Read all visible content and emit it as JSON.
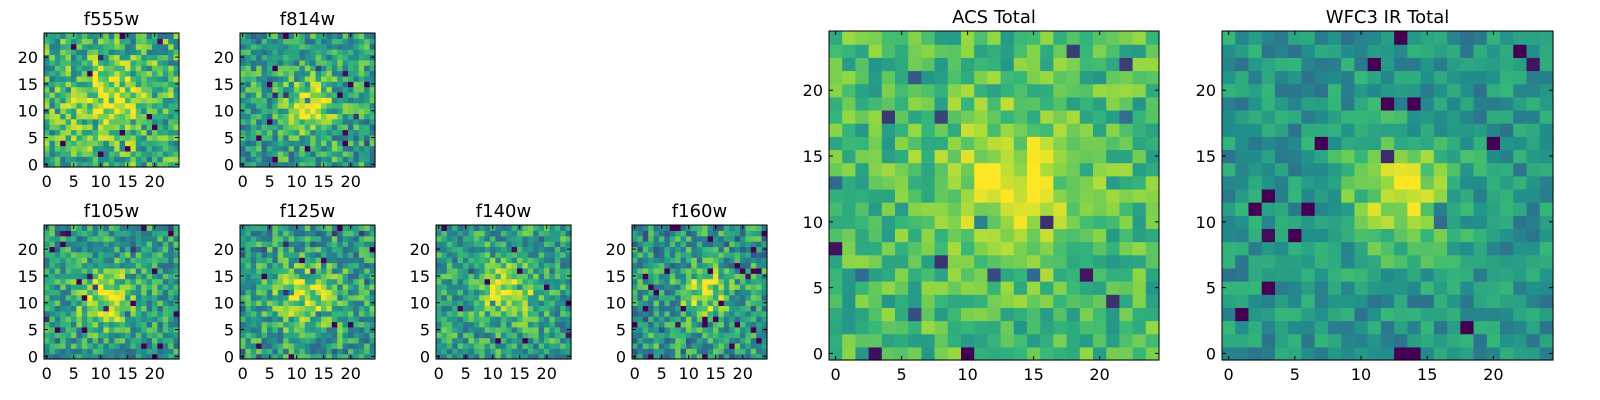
{
  "colormap": [
    "#440154",
    "#31688e",
    "#21918c",
    "#35b779",
    "#90d743",
    "#fde725"
  ],
  "chart_data": [
    {
      "type": "heatmap",
      "title": "f555w",
      "grid_size": 25,
      "center": [
        12,
        12
      ],
      "peak": 0.3,
      "spread": 5.0,
      "noise": 0.32,
      "base": 0.55,
      "seed": 11,
      "xticks": [
        0,
        5,
        10,
        15,
        20
      ],
      "yticks": [
        0,
        5,
        10,
        15,
        20
      ],
      "xlim": [
        -0.5,
        24.5
      ],
      "ylim": [
        -0.5,
        24.5
      ]
    },
    {
      "type": "heatmap",
      "title": "f814w",
      "grid_size": 25,
      "center": [
        12,
        11
      ],
      "peak": 0.45,
      "spread": 3.5,
      "noise": 0.3,
      "base": 0.48,
      "seed": 23,
      "xticks": [
        0,
        5,
        10,
        15,
        20
      ],
      "yticks": [
        0,
        5,
        10,
        15,
        20
      ],
      "xlim": [
        -0.5,
        24.5
      ],
      "ylim": [
        -0.5,
        24.5
      ]
    },
    {
      "type": "heatmap",
      "title": "f105w",
      "grid_size": 25,
      "center": [
        11,
        11
      ],
      "peak": 0.45,
      "spread": 4.0,
      "noise": 0.28,
      "base": 0.45,
      "seed": 37,
      "xticks": [
        0,
        5,
        10,
        15,
        20
      ],
      "yticks": [
        0,
        5,
        10,
        15,
        20
      ],
      "xlim": [
        -0.5,
        24.5
      ],
      "ylim": [
        -0.5,
        24.5
      ]
    },
    {
      "type": "heatmap",
      "title": "f125w",
      "grid_size": 25,
      "center": [
        12,
        11
      ],
      "peak": 0.35,
      "spread": 4.5,
      "noise": 0.3,
      "base": 0.45,
      "seed": 41,
      "xticks": [
        0,
        5,
        10,
        15,
        20
      ],
      "yticks": [
        0,
        5,
        10,
        15,
        20
      ],
      "xlim": [
        -0.5,
        24.5
      ],
      "ylim": [
        -0.5,
        24.5
      ]
    },
    {
      "type": "heatmap",
      "title": "f140w",
      "grid_size": 25,
      "center": [
        13,
        12
      ],
      "peak": 0.45,
      "spread": 3.5,
      "noise": 0.28,
      "base": 0.48,
      "seed": 53,
      "xticks": [
        0,
        5,
        10,
        15,
        20
      ],
      "yticks": [
        0,
        5,
        10,
        15,
        20
      ],
      "xlim": [
        -0.5,
        24.5
      ],
      "ylim": [
        -0.5,
        24.5
      ]
    },
    {
      "type": "heatmap",
      "title": "f160w",
      "grid_size": 25,
      "center": [
        13,
        12
      ],
      "peak": 0.45,
      "spread": 3.0,
      "noise": 0.3,
      "base": 0.45,
      "seed": 67,
      "xticks": [
        0,
        5,
        10,
        15,
        20
      ],
      "yticks": [
        0,
        5,
        10,
        15,
        20
      ],
      "xlim": [
        -0.5,
        24.5
      ],
      "ylim": [
        -0.5,
        24.5
      ]
    },
    {
      "type": "heatmap",
      "title": "ACS Total",
      "grid_size": 25,
      "center": [
        13,
        13
      ],
      "peak": 0.35,
      "spread": 3.5,
      "noise": 0.2,
      "base": 0.62,
      "seed": 79,
      "xticks": [
        0,
        5,
        10,
        15,
        20
      ],
      "yticks": [
        0,
        5,
        10,
        15,
        20
      ],
      "xlim": [
        -0.5,
        24.5
      ],
      "ylim": [
        -0.5,
        24.5
      ]
    },
    {
      "type": "heatmap",
      "title": "WFC3 IR Total",
      "grid_size": 25,
      "center": [
        13,
        12
      ],
      "peak": 0.5,
      "spread": 3.0,
      "noise": 0.18,
      "base": 0.42,
      "seed": 97,
      "xticks": [
        0,
        5,
        10,
        15,
        20
      ],
      "yticks": [
        0,
        5,
        10,
        15,
        20
      ],
      "xlim": [
        -0.5,
        24.5
      ],
      "ylim": [
        -0.5,
        24.5
      ]
    }
  ]
}
